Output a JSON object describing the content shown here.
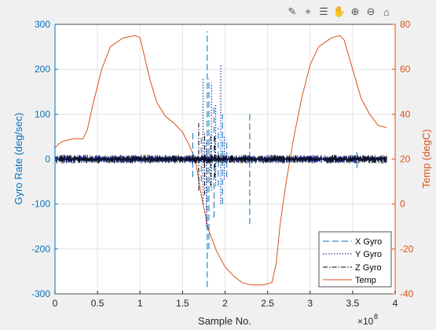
{
  "toolbar": {
    "icons": [
      "brush-icon",
      "data-tips-icon",
      "legend-icon",
      "pan-icon",
      "zoom-in-icon",
      "zoom-out-icon",
      "home-icon"
    ]
  },
  "chart_data": {
    "type": "line",
    "xlabel": "Sample No.",
    "x_exponent_label": "×10",
    "x_exponent": "8",
    "ylabel_left": "Gyro Rate (deg/sec)",
    "ylabel_right": "Temp (degC)",
    "xlim": [
      0,
      4
    ],
    "ylim_left": [
      -300,
      300
    ],
    "ylim_right": [
      -40,
      80
    ],
    "xticks": [
      "0",
      "0.5",
      "1",
      "1.5",
      "2",
      "2.5",
      "3",
      "3.5",
      "4"
    ],
    "yticks_left": [
      "-300",
      "-200",
      "-100",
      "0",
      "100",
      "200",
      "300"
    ],
    "yticks_right": [
      "-40",
      "-20",
      "0",
      "20",
      "40",
      "60",
      "80"
    ],
    "grid": true,
    "legend_position": "bottom-right",
    "colors": {
      "x_gyro": "#0072bd",
      "y_gyro": "#00008b",
      "z_gyro": "#000000",
      "temp": "#d95319",
      "left_axis": "#0072bd",
      "right_axis": "#d95319"
    },
    "series": [
      {
        "name": "X Gyro",
        "axis": "left",
        "style": "dashed",
        "noise_band": [
          -6,
          6
        ],
        "spikes": [
          {
            "x": 1.62,
            "y": [
              -40,
              60
            ]
          },
          {
            "x": 1.72,
            "y": [
              -50,
              55
            ]
          },
          {
            "x": 1.79,
            "y": [
              -285,
              285
            ]
          },
          {
            "x": 1.81,
            "y": [
              -200,
              180
            ]
          },
          {
            "x": 1.87,
            "y": [
              -130,
              120
            ]
          },
          {
            "x": 1.92,
            "y": [
              -60,
              70
            ]
          },
          {
            "x": 1.97,
            "y": [
              -100,
              100
            ]
          },
          {
            "x": 2.02,
            "y": [
              -40,
              45
            ]
          },
          {
            "x": 2.29,
            "y": [
              -145,
              105
            ]
          },
          {
            "x": 3.55,
            "y": [
              -20,
              20
            ]
          }
        ]
      },
      {
        "name": "Y Gyro",
        "axis": "left",
        "style": "dotted",
        "noise_band": [
          -9,
          9
        ],
        "spikes": [
          {
            "x": 1.74,
            "y": [
              -100,
              180
            ]
          },
          {
            "x": 1.78,
            "y": [
              -150,
              40
            ]
          },
          {
            "x": 1.84,
            "y": [
              -70,
              170
            ]
          },
          {
            "x": 1.89,
            "y": [
              -60,
              120
            ]
          },
          {
            "x": 1.95,
            "y": [
              -100,
              210
            ]
          },
          {
            "x": 1.99,
            "y": [
              -45,
              50
            ]
          }
        ]
      },
      {
        "name": "Z Gyro",
        "axis": "left",
        "style": "dashdot",
        "noise_band": [
          -10,
          10
        ],
        "spikes": [
          {
            "x": 1.69,
            "y": [
              -70,
              80
            ]
          },
          {
            "x": 1.76,
            "y": [
              -80,
              60
            ]
          },
          {
            "x": 1.83,
            "y": [
              -60,
              55
            ]
          },
          {
            "x": 1.88,
            "y": [
              -40,
              50
            ]
          }
        ]
      },
      {
        "name": "Temp",
        "axis": "right",
        "style": "solid",
        "x": [
          0,
          0.05,
          0.1,
          0.2,
          0.33,
          0.38,
          0.45,
          0.55,
          0.65,
          0.8,
          0.95,
          1.0,
          1.05,
          1.12,
          1.2,
          1.3,
          1.4,
          1.5,
          1.58,
          1.65,
          1.72,
          1.8,
          1.9,
          2.0,
          2.1,
          2.2,
          2.3,
          2.45,
          2.55,
          2.6,
          2.65,
          2.72,
          2.8,
          2.9,
          3.0,
          3.1,
          3.25,
          3.35,
          3.4,
          3.5,
          3.6,
          3.7,
          3.8,
          3.9
        ],
        "y": [
          25,
          27,
          28,
          29,
          29,
          33,
          45,
          60,
          70,
          74,
          75,
          74,
          66,
          55,
          45,
          39,
          36,
          32,
          26,
          20,
          4,
          -11,
          -21,
          -28,
          -32,
          -35,
          -36,
          -36,
          -35,
          -27,
          -8,
          10,
          28,
          47,
          62,
          70,
          74,
          75,
          73,
          60,
          47,
          40,
          35,
          34
        ]
      }
    ]
  }
}
